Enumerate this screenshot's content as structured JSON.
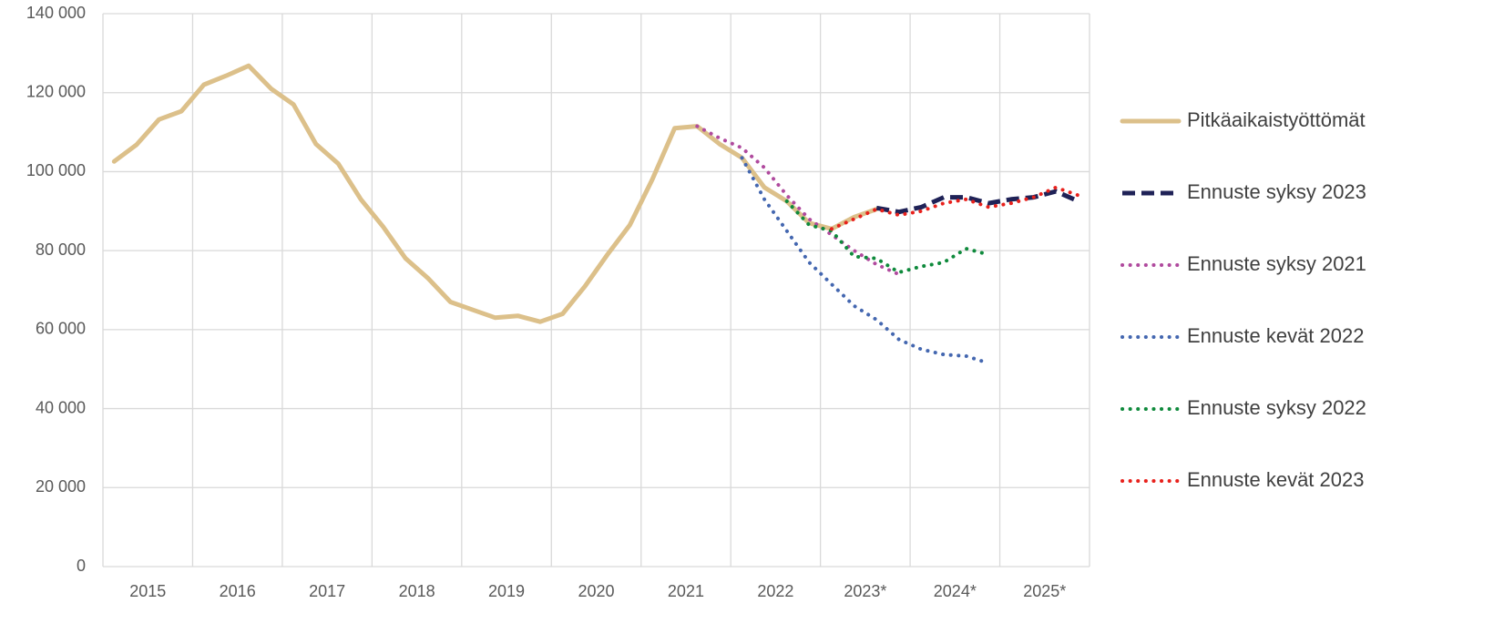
{
  "chart_data": {
    "type": "line",
    "categories": [
      "2015",
      null,
      null,
      null,
      "2016",
      null,
      null,
      null,
      "2017",
      null,
      null,
      null,
      "2018",
      null,
      null,
      null,
      "2019",
      null,
      null,
      null,
      "2020",
      null,
      null,
      null,
      "2021",
      null,
      null,
      null,
      "2022",
      null,
      null,
      null,
      "2023*",
      null,
      null,
      null,
      "2024*",
      null,
      null,
      null,
      "2025*",
      null,
      null,
      null
    ],
    "ylim": [
      0,
      140000
    ],
    "yticks": [
      0,
      {
        "value": 20000,
        "label": "20 000"
      },
      {
        "value": 40000,
        "label": "40 000"
      },
      {
        "value": 60000,
        "label": "60 000"
      },
      {
        "value": 80000,
        "label": "80 000"
      },
      {
        "value": 100000,
        "label": "100 000"
      },
      {
        "value": 120000,
        "label": "120 000"
      },
      {
        "value": 140000,
        "label": "140 000"
      }
    ],
    "grid": true,
    "legend": "right",
    "series": [
      {
        "name": "Pitkäaikaistyöttömät",
        "color": "#dcc08a",
        "style": "solid",
        "values": [
          102600,
          106800,
          113200,
          115300,
          122000,
          124300,
          126800,
          121000,
          117000,
          107000,
          102000,
          93000,
          86000,
          78000,
          73000,
          67000,
          65000,
          63000,
          63500,
          62000,
          64000,
          71000,
          79000,
          86500,
          98000,
          111000,
          111500,
          107000,
          103500,
          96000,
          92500,
          87000,
          85500,
          88500,
          90500,
          null,
          null,
          null,
          null,
          null,
          null,
          null,
          null,
          null
        ]
      },
      {
        "name": "Ennuste syksy 2023",
        "color": "#1f2257",
        "style": "dashed",
        "values": [
          null,
          null,
          null,
          null,
          null,
          null,
          null,
          null,
          null,
          null,
          null,
          null,
          null,
          null,
          null,
          null,
          null,
          null,
          null,
          null,
          null,
          null,
          null,
          null,
          null,
          null,
          null,
          null,
          null,
          null,
          null,
          null,
          null,
          null,
          90800,
          89800,
          91000,
          93500,
          93500,
          92000,
          93000,
          93500,
          95000,
          92500
        ]
      },
      {
        "name": "Ennuste syksy 2021",
        "color": "#b04a9e",
        "style": "dotted",
        "values": [
          null,
          null,
          null,
          null,
          null,
          null,
          null,
          null,
          null,
          null,
          null,
          null,
          null,
          null,
          null,
          null,
          null,
          null,
          null,
          null,
          null,
          null,
          null,
          null,
          null,
          null,
          111500,
          108500,
          106000,
          101000,
          94000,
          88000,
          84000,
          80000,
          76500,
          74000,
          null,
          null,
          null,
          null,
          null,
          null,
          null,
          null
        ]
      },
      {
        "name": "Ennuste kevät 2022",
        "color": "#4467b0",
        "style": "dotted",
        "values": [
          null,
          null,
          null,
          null,
          null,
          null,
          null,
          null,
          null,
          null,
          null,
          null,
          null,
          null,
          null,
          null,
          null,
          null,
          null,
          null,
          null,
          null,
          null,
          null,
          null,
          null,
          null,
          null,
          103500,
          93000,
          85000,
          77000,
          71500,
          66000,
          62500,
          57500,
          55000,
          53700,
          53300,
          51500,
          null,
          null,
          null,
          null
        ]
      },
      {
        "name": "Ennuste syksy 2022",
        "color": "#0f8a3c",
        "style": "dotted",
        "values": [
          null,
          null,
          null,
          null,
          null,
          null,
          null,
          null,
          null,
          null,
          null,
          null,
          null,
          null,
          null,
          null,
          null,
          null,
          null,
          null,
          null,
          null,
          null,
          null,
          null,
          null,
          null,
          null,
          null,
          null,
          92500,
          86500,
          85000,
          78500,
          78000,
          74500,
          76000,
          77000,
          80500,
          79000,
          null,
          null,
          null,
          null
        ]
      },
      {
        "name": "Ennuste kevät 2023",
        "color": "#e8211c",
        "style": "dotted",
        "values": [
          null,
          null,
          null,
          null,
          null,
          null,
          null,
          null,
          null,
          null,
          null,
          null,
          null,
          null,
          null,
          null,
          null,
          null,
          null,
          null,
          null,
          null,
          null,
          null,
          null,
          null,
          null,
          null,
          null,
          null,
          null,
          null,
          85500,
          88000,
          90500,
          89000,
          90000,
          92000,
          93000,
          91000,
          92000,
          93500,
          96000,
          94000
        ]
      }
    ]
  }
}
